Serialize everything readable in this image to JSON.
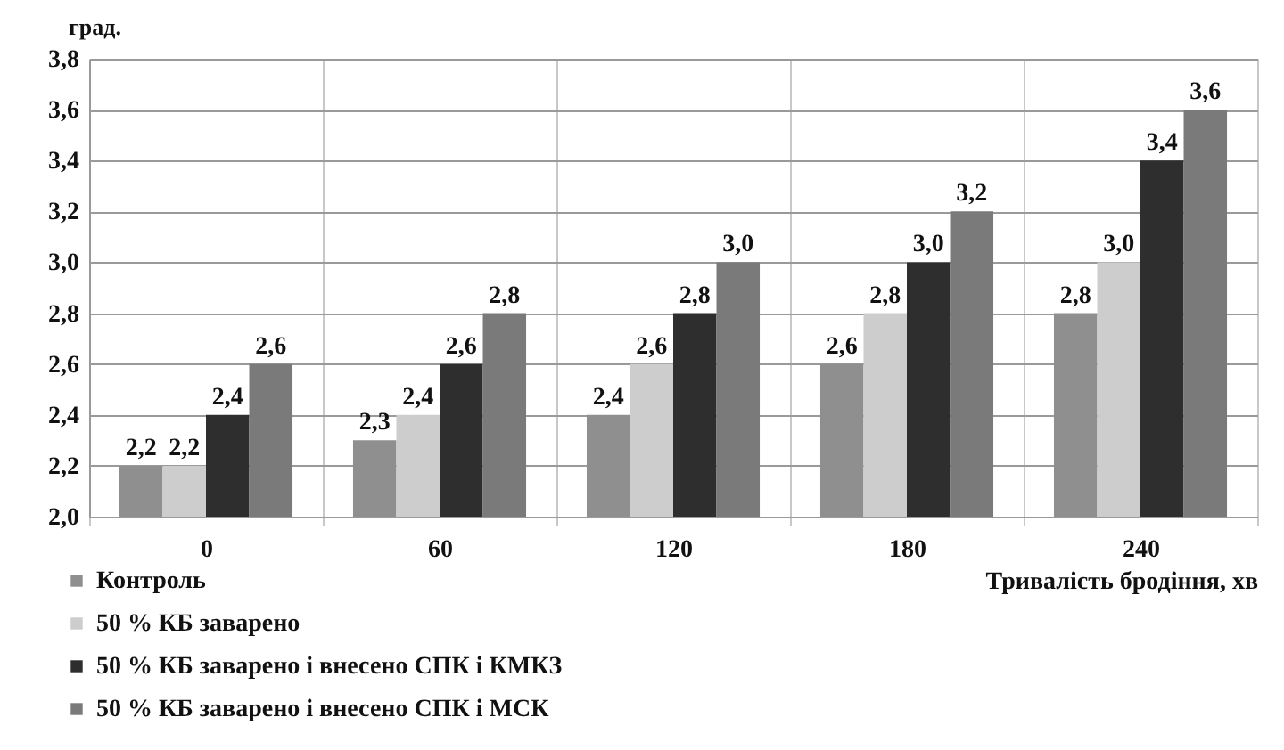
{
  "chart_data": {
    "type": "bar",
    "xlabel": "Тривалість бродіння, хв",
    "ylabel": "град.",
    "categories": [
      "0",
      "60",
      "120",
      "180",
      "240"
    ],
    "series": [
      {
        "name": "Контроль",
        "color": "#8f8f8f",
        "values": [
          2.2,
          2.3,
          2.4,
          2.6,
          2.8
        ],
        "value_labels": [
          "2,2",
          "2,3",
          "2,4",
          "2,6",
          "2,8"
        ]
      },
      {
        "name": "50 % КБ заварено",
        "color": "#cdcdcd",
        "values": [
          2.2,
          2.4,
          2.6,
          2.8,
          3.0
        ],
        "value_labels": [
          "2,2",
          "2,4",
          "2,6",
          "2,8",
          "3,0"
        ]
      },
      {
        "name": "50 % КБ заварено і внесено СПК і КМКЗ",
        "color": "#2e2e2e",
        "values": [
          2.4,
          2.6,
          2.8,
          3.0,
          3.4
        ],
        "value_labels": [
          "2,4",
          "2,6",
          "2,8",
          "3,0",
          "3,4"
        ]
      },
      {
        "name": "50 % КБ заварено і внесено СПК і МСК",
        "color": "#7a7a7a",
        "values": [
          2.6,
          2.8,
          3.0,
          3.2,
          3.6
        ],
        "value_labels": [
          "2,6",
          "2,8",
          "3,0",
          "3,2",
          "3,6"
        ]
      }
    ],
    "ylim": [
      2.0,
      3.8
    ],
    "yticks": [
      {
        "value": 2.0,
        "label": "2,0"
      },
      {
        "value": 2.2,
        "label": "2,2"
      },
      {
        "value": 2.4,
        "label": "2,4"
      },
      {
        "value": 2.6,
        "label": "2,6"
      },
      {
        "value": 2.8,
        "label": "2,8"
      },
      {
        "value": 3.0,
        "label": "3,0"
      },
      {
        "value": 3.2,
        "label": "3,2"
      },
      {
        "value": 3.4,
        "label": "3,4"
      },
      {
        "value": 3.6,
        "label": "3,6"
      },
      {
        "value": 3.8,
        "label": "3,8"
      }
    ],
    "grid": true,
    "legend": "bottom left"
  }
}
